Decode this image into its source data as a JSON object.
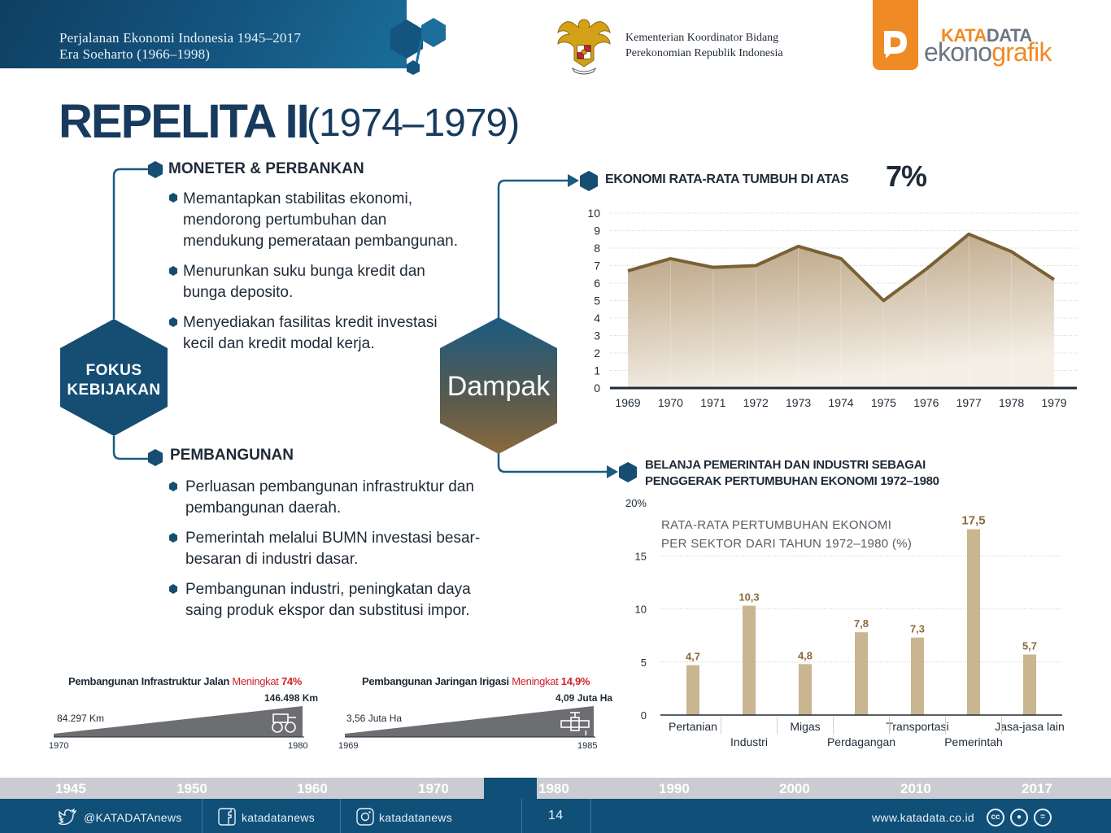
{
  "header": {
    "series_title": "Perjalanan Ekonomi Indonesia 1945–2017",
    "era": "Era Soeharto  (1966–1998)",
    "ministry_line1": "Kementerian Koordinator Bidang",
    "ministry_line2": "Perekonomian Republik Indonesia",
    "logo_kata": "KATA",
    "logo_data": "DATA",
    "logo_ekono": "ekono",
    "logo_grafik": "grafik"
  },
  "title": {
    "main": "REPELITA II",
    "years": "(1974–1979)"
  },
  "policy": {
    "hub_label_line1": "FOKUS",
    "hub_label_line2": "KEBIJAKAN",
    "impact_label": "Dampak",
    "monetary": {
      "heading": "MONETER & PERBANKAN",
      "items": [
        {
          "line1": "Memantapkan stabilitas ekonomi,",
          "line2": "mendorong pertumbuhan dan",
          "line3": "mendukung pemerataan pembangunan."
        },
        {
          "line1": "Menurunkan suku bunga kredit dan",
          "line2": "bunga deposito."
        },
        {
          "line1": "Menyediakan fasilitas kredit investasi",
          "line2": "kecil dan kredit modal kerja."
        }
      ]
    },
    "development": {
      "heading": "PEMBANGUNAN",
      "items": [
        {
          "line1": "Perluasan pembangunan infrastruktur dan",
          "line2": "pembangunan daerah."
        },
        {
          "line1": "Pemerintah melalui BUMN investasi besar-",
          "line2": "besaran di industri dasar."
        },
        {
          "line1": "Pembangunan industri, peningkatan daya",
          "line2": "saing produk ekspor dan substitusi impor."
        }
      ]
    }
  },
  "chart_data": [
    {
      "type": "area",
      "title": "EKONOMI RATA-RATA TUMBUH DI ATAS",
      "title_highlight": "7%",
      "x": [
        "1969",
        "1970",
        "1971",
        "1972",
        "1973",
        "1974",
        "1975",
        "1976",
        "1977",
        "1978",
        "1979"
      ],
      "values": [
        6.7,
        7.4,
        6.9,
        7.0,
        8.1,
        7.4,
        5.0,
        6.8,
        8.8,
        7.8,
        6.2
      ],
      "ylim": [
        0,
        10
      ],
      "yticks": [
        0,
        1,
        2,
        3,
        4,
        5,
        6,
        7,
        8,
        9,
        10
      ],
      "grid": true,
      "color": "#7a6135"
    },
    {
      "type": "bar",
      "title_line1": "BELANJA PEMERINTAH DAN INDUSTRI SEBAGAI",
      "title_line2": "PENGGERAK PERTUMBUHAN EKONOMI 1972–1980",
      "subtitle_line1": "RATA-RATA PERTUMBUHAN EKONOMI",
      "subtitle_line2": "PER SEKTOR DARI TAHUN 1972–1980 (%)",
      "categories": [
        "Pertanian",
        "Industri",
        "Migas",
        "Perdagangan",
        "Transportasi",
        "Pemerintah",
        "Jasa-jasa lain"
      ],
      "values": [
        4.7,
        10.3,
        4.8,
        7.8,
        7.3,
        17.5,
        5.7
      ],
      "value_labels": [
        "4,7",
        "10,3",
        "4,8",
        "7,8",
        "7,3",
        "17,5",
        "5,7"
      ],
      "ylim": [
        0,
        20
      ],
      "yticks": [
        "0",
        "5",
        "10",
        "15",
        "20%"
      ],
      "grid": true,
      "color": "#c9b58f"
    },
    {
      "type": "area",
      "title": "Pembangunan Infrastruktur Jalan",
      "change_label": "Meningkat",
      "change_value": "74%",
      "x": [
        "1970",
        "1980"
      ],
      "value_labels": [
        "84.297 Km",
        "146.498 Km"
      ],
      "values": [
        84297,
        146498
      ],
      "icon": "road-roller-icon"
    },
    {
      "type": "area",
      "title": "Pembangunan Jaringan Irigasi",
      "change_label": "Meningkat",
      "change_value": "14,9%",
      "x": [
        "1969",
        "1985"
      ],
      "value_labels": [
        "3,56 Juta Ha",
        "4,09 Juta Ha"
      ],
      "values": [
        3.56,
        4.09
      ],
      "icon": "water-valve-icon"
    }
  ],
  "timeline": {
    "years": [
      "1945",
      "1950",
      "1960",
      "1970",
      "1980",
      "1990",
      "2000",
      "2010",
      "2017"
    ],
    "active": "1970–1980"
  },
  "footer": {
    "twitter": "@KATADATAnews",
    "facebook": "katadatanews",
    "instagram": "katadatanews",
    "page": "14",
    "website": "www.katadata.co.id",
    "license_icons": [
      "cc-icon",
      "by-icon",
      "nd-icon"
    ]
  }
}
